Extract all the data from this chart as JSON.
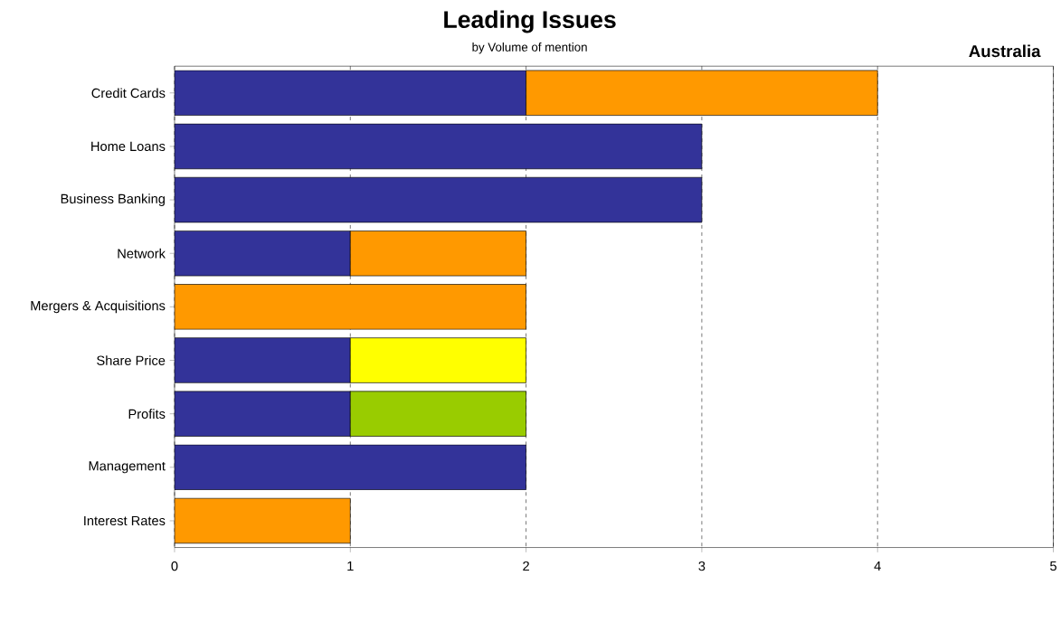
{
  "chart_data": {
    "type": "bar",
    "title": "Leading Issues",
    "subtitle": "by Volume of mention",
    "annotations": [
      "Australia"
    ],
    "orientation": "horizontal",
    "stacked": true,
    "grid": "x",
    "categories": [
      "Credit Cards",
      "Home Loans",
      "Business Banking",
      "Network",
      "Mergers & Acquisitions",
      "Share Price",
      "Profits",
      "Management",
      "Interest Rates"
    ],
    "xlim": [
      0,
      5
    ],
    "xticks": [
      0,
      1,
      2,
      3,
      4,
      5
    ],
    "series": [
      {
        "color": "#333399",
        "values": [
          2,
          3,
          3,
          1,
          null,
          1,
          1,
          2,
          null
        ]
      },
      {
        "color": "#ff9900",
        "values": [
          2,
          null,
          null,
          1,
          2,
          null,
          null,
          null,
          1
        ]
      },
      {
        "color": "#ffff00",
        "values": [
          null,
          null,
          null,
          null,
          null,
          1,
          null,
          null,
          null
        ]
      },
      {
        "color": "#99cc00",
        "values": [
          null,
          null,
          null,
          null,
          null,
          null,
          1,
          null,
          null
        ]
      }
    ]
  }
}
